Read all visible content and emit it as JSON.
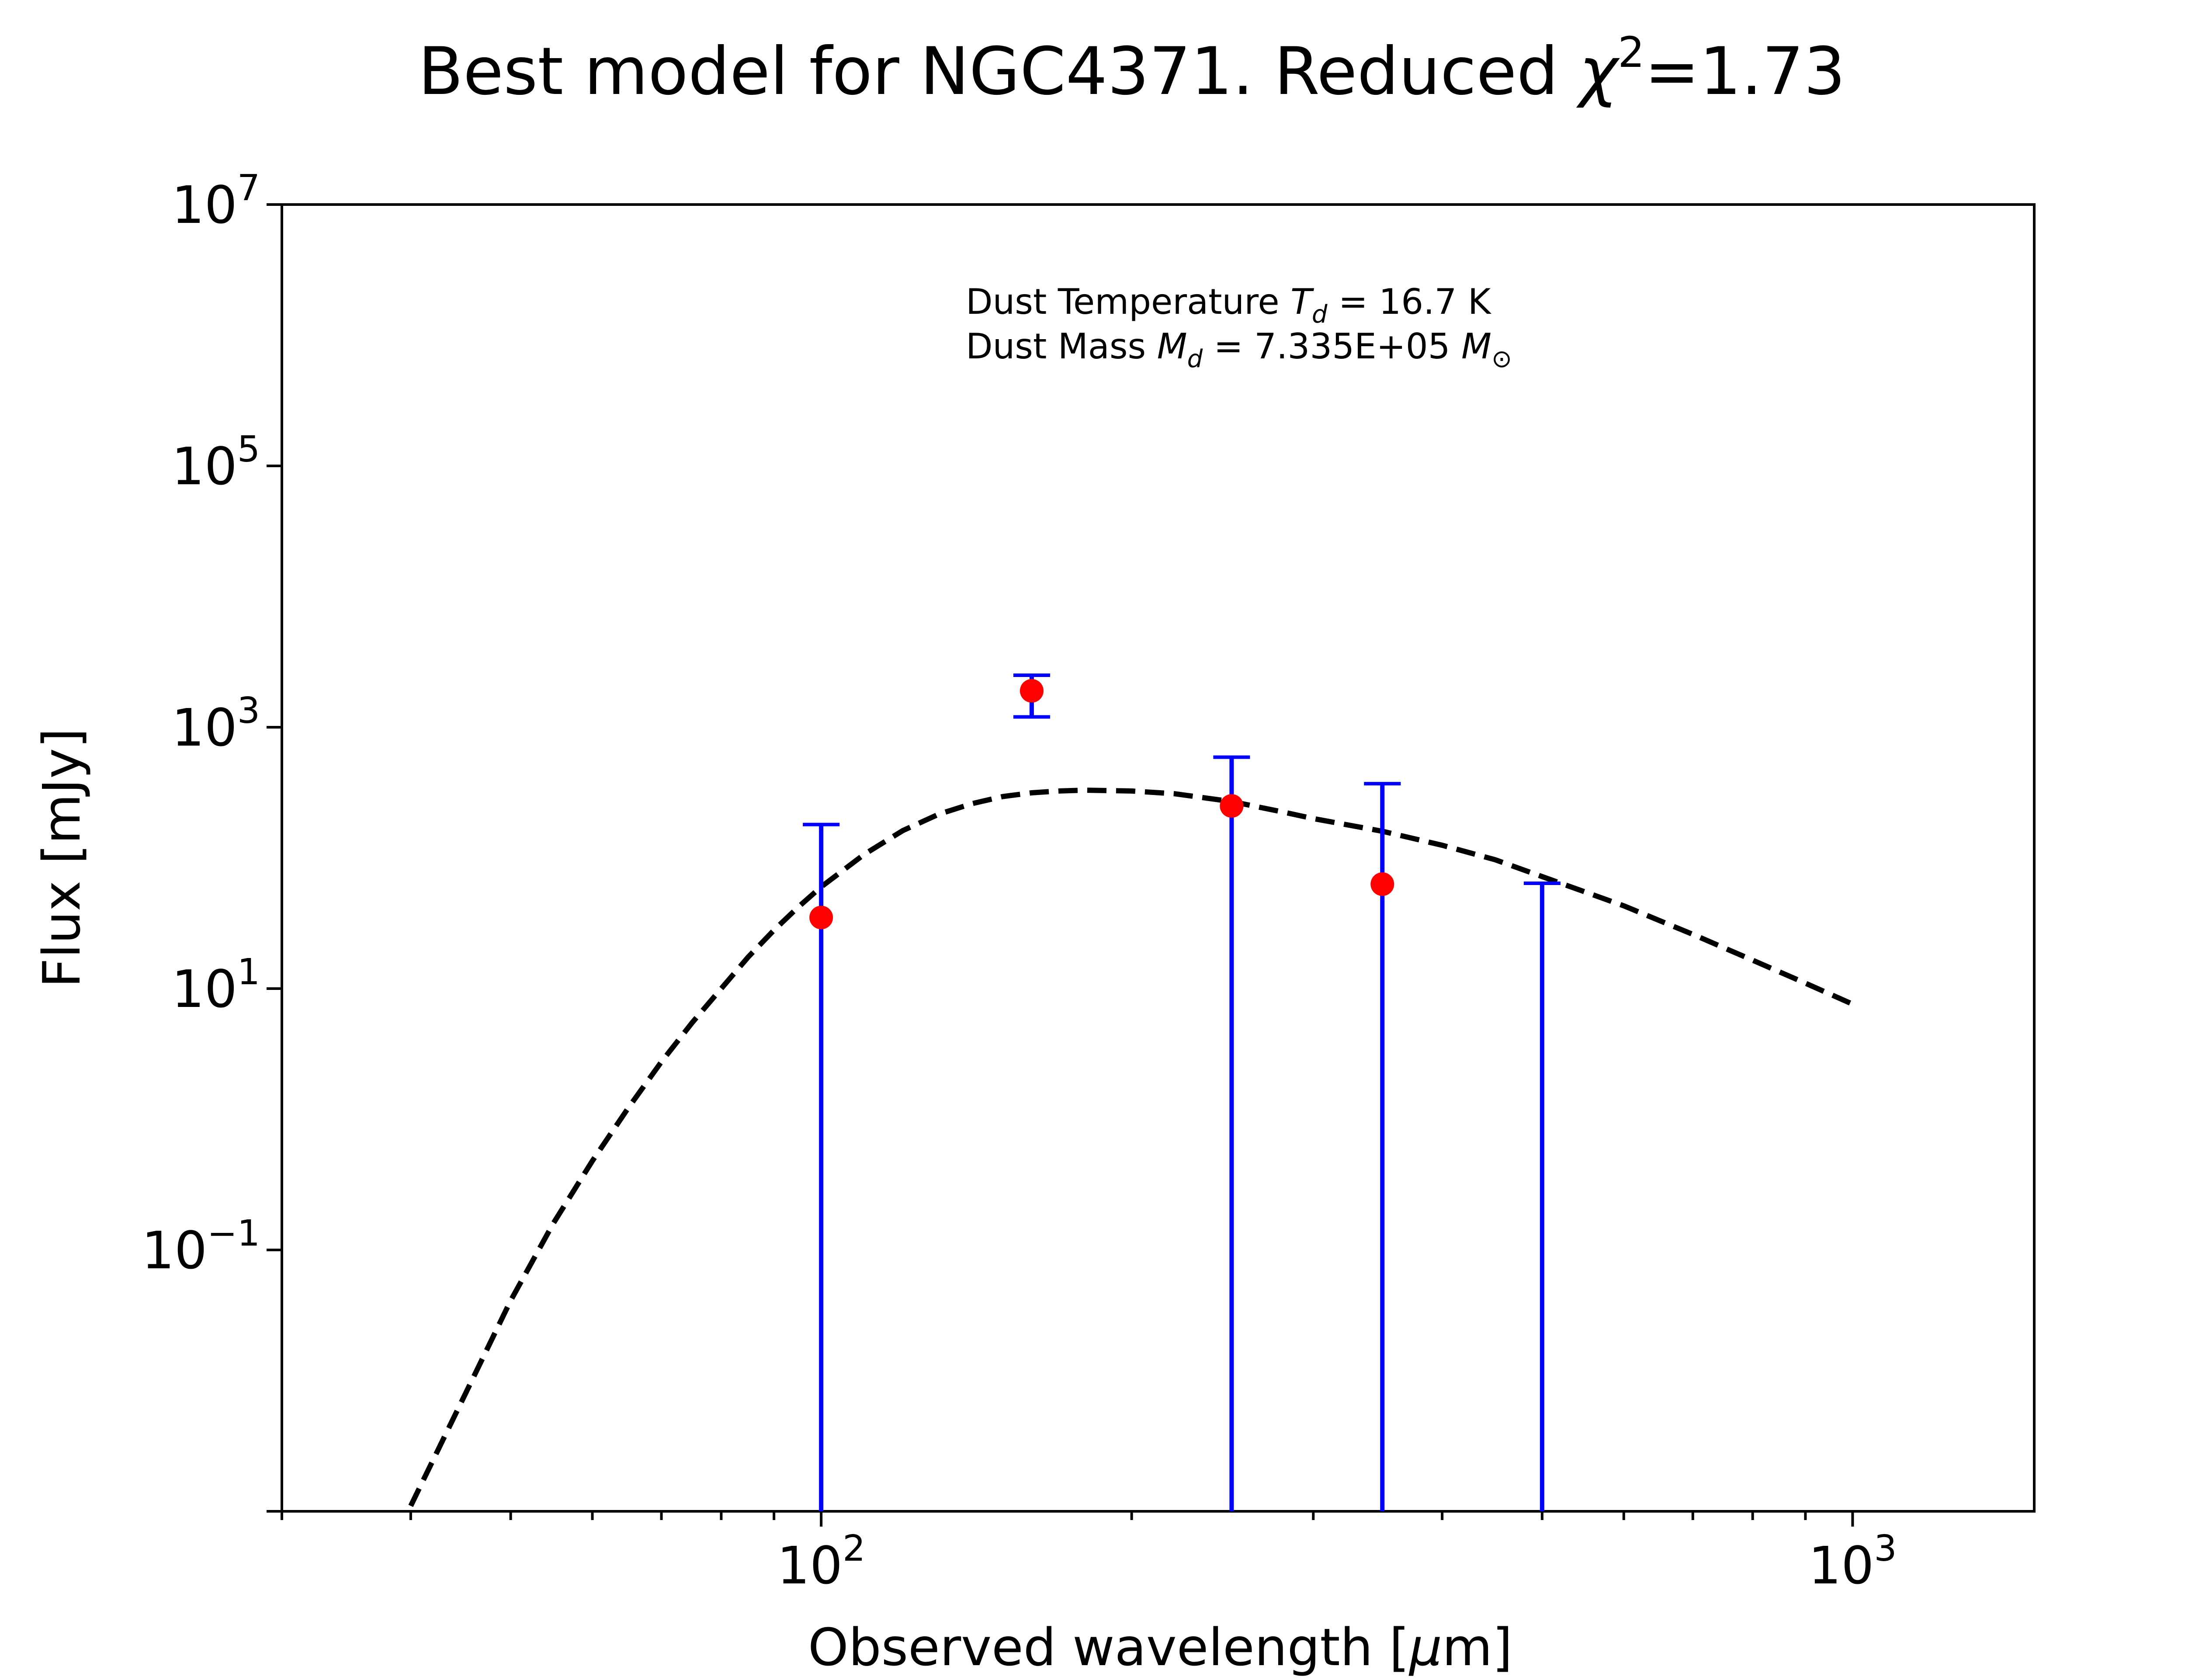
{
  "chart_data": {
    "type": "scatter",
    "title": {
      "prefix": "Best model for NGC4371. Reduced ",
      "symbol": "χ",
      "superscript": "2",
      "suffix": "=1.73"
    },
    "xlabel": {
      "prefix": "Observed wavelength [",
      "symbol": "μ",
      "suffix": "m]"
    },
    "ylabel": "Flux [mJy]",
    "x_scale": "log",
    "y_scale": "log",
    "xlim": [
      30,
      1500
    ],
    "ylim": [
      0.001,
      10000000
    ],
    "grid": false,
    "x_ticks": [
      {
        "value": 100,
        "base": "10",
        "exp": "2"
      },
      {
        "value": 1000,
        "base": "10",
        "exp": "3"
      }
    ],
    "y_ticks": [
      {
        "value": 10000000,
        "base": "10",
        "exp": "7"
      },
      {
        "value": 100000,
        "base": "10",
        "exp": "5"
      },
      {
        "value": 1000,
        "base": "10",
        "exp": "3"
      },
      {
        "value": 10,
        "base": "10",
        "exp": "1"
      },
      {
        "value": 0.1,
        "base": "10",
        "exp": "−1"
      }
    ],
    "y_minor_ticks": [
      0.001
    ],
    "annotations": {
      "temperature": {
        "label": "Dust Temperature",
        "symbol": "T",
        "subscript": "d",
        "value": " = 16.7 K"
      },
      "mass": {
        "label": "Dust Mass",
        "symbol": "M",
        "subscript": "d",
        "value": " = 7.335E+05",
        "unit_symbol": "M",
        "unit_subscript": "⊙"
      }
    },
    "observations": {
      "point_color": "#ff0000",
      "errorbar_color": "#0000ff",
      "points": [
        {
          "x": 100,
          "y": 35,
          "err_low": 35,
          "err_high": 145
        },
        {
          "x": 160,
          "y": 1900,
          "err_low": 700,
          "err_high": 600
        },
        {
          "x": 250,
          "y": 250,
          "err_low": 250,
          "err_high": 340
        },
        {
          "x": 350,
          "y": 63,
          "err_low": 63,
          "err_high": 307
        },
        {
          "x": 500,
          "y": null,
          "err_low": 0,
          "err_high": 64
        }
      ]
    },
    "model": {
      "line_color": "#000000",
      "line_style": "dashed",
      "x": [
        40,
        45,
        50,
        55,
        60,
        65,
        70,
        75,
        80,
        85,
        90,
        95,
        100,
        110,
        120,
        130,
        140,
        150,
        160,
        170,
        180,
        200,
        220,
        250,
        280,
        300,
        350,
        400,
        450,
        500,
        600,
        700,
        800,
        900,
        1000
      ],
      "y": [
        0.0011,
        0.0074,
        0.041,
        0.16,
        0.48,
        1.22,
        2.75,
        5.5,
        10,
        17.5,
        28,
        42,
        60,
        106,
        162,
        216,
        260,
        295,
        315,
        325,
        330,
        325,
        310,
        270,
        225,
        200,
        160,
        125,
        97,
        72,
        43,
        26,
        16.5,
        11,
        7.6
      ]
    }
  }
}
